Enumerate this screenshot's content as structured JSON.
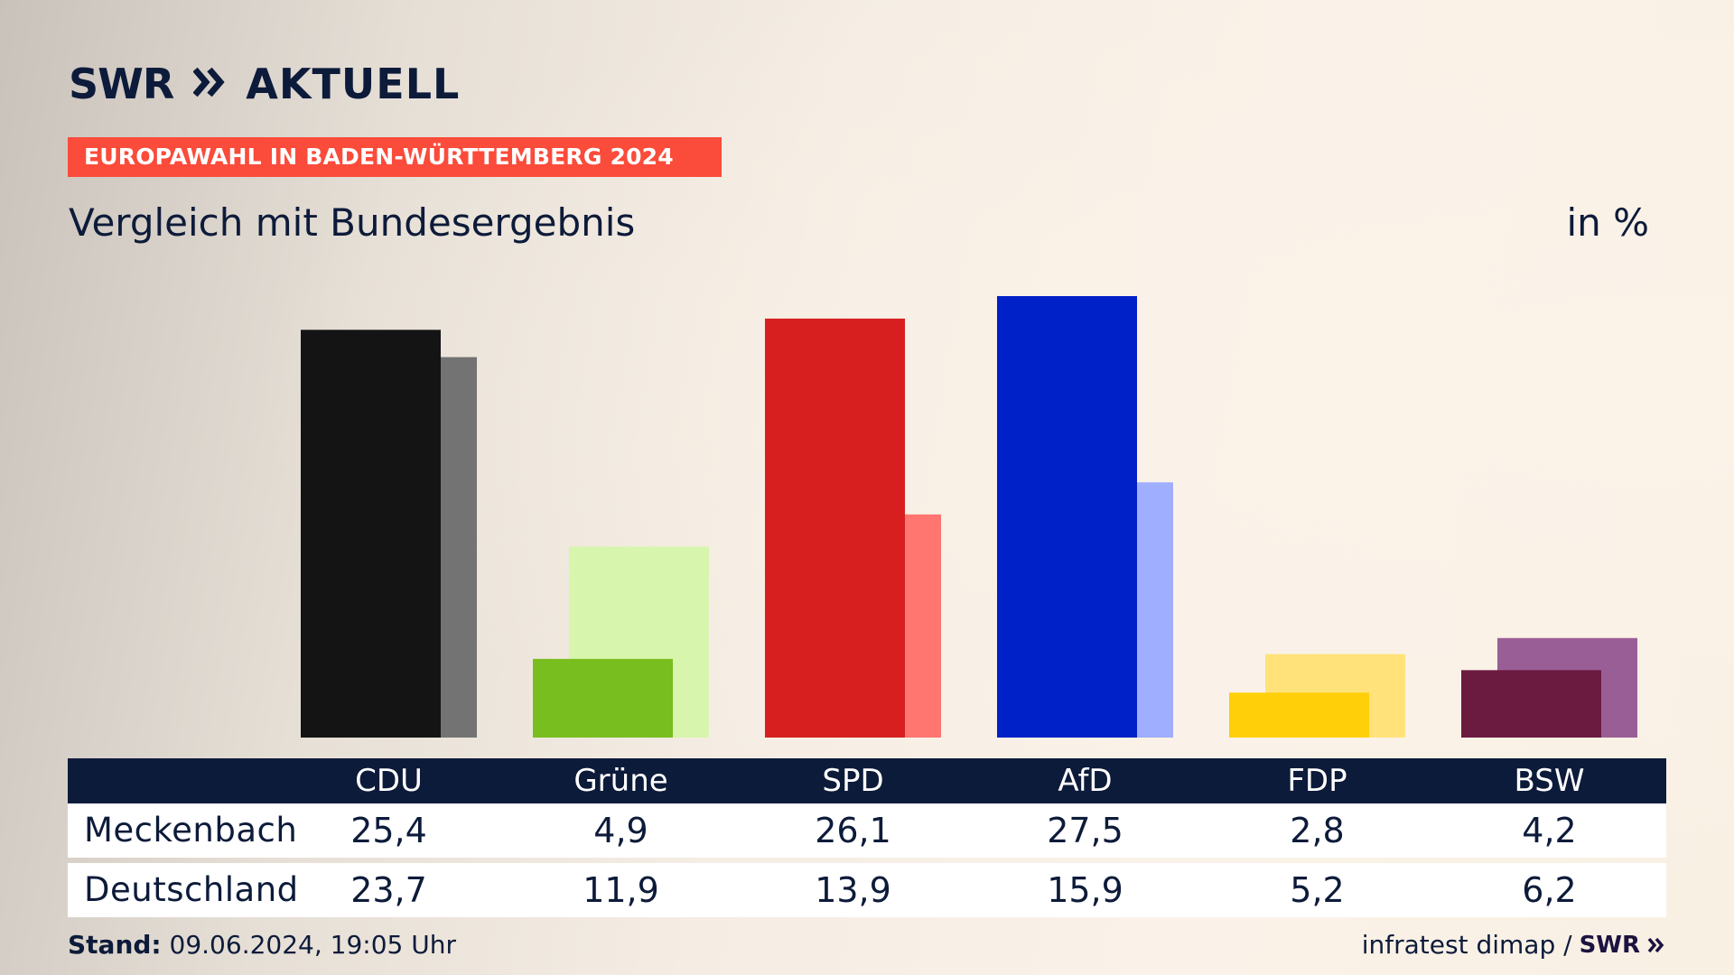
{
  "brand": {
    "swr": "SWR",
    "aktuell": "AKTUELL"
  },
  "banner": "EUROPAWAHL IN BADEN-WÜRTTEMBERG 2024",
  "subtitle": "Vergleich mit Bundesergebnis",
  "unit": "in %",
  "chart_data": {
    "type": "bar",
    "categories": [
      "CDU",
      "Grüne",
      "SPD",
      "AfD",
      "FDP",
      "BSW"
    ],
    "series": [
      {
        "name": "Meckenbach",
        "values": [
          25.4,
          4.9,
          26.1,
          27.5,
          2.8,
          4.2
        ],
        "value_labels": [
          "25,4",
          "4,9",
          "26,1",
          "27,5",
          "2,8",
          "4,2"
        ]
      },
      {
        "name": "Deutschland",
        "values": [
          23.7,
          11.9,
          13.9,
          15.9,
          5.2,
          6.2
        ],
        "value_labels": [
          "23,7",
          "11,9",
          "13,9",
          "15,9",
          "5,2",
          "6,2"
        ]
      }
    ],
    "colors": {
      "primary": [
        "#141414",
        "#78be1e",
        "#d71f20",
        "#0020c8",
        "#ffcf0a",
        "#6b1a40"
      ],
      "secondary": [
        "#737373",
        "#d8f5ad",
        "#ff7570",
        "#9faeff",
        "#ffe27a",
        "#9a5e96"
      ]
    },
    "ylim": [
      0,
      27.5
    ]
  },
  "table": {
    "row_labels": [
      "Meckenbach",
      "Deutschland"
    ]
  },
  "footer": {
    "stand_label": "Stand:",
    "stand_value": "09.06.2024, 19:05 Uhr",
    "source": "infratest dimap /",
    "source_brand": "SWR"
  }
}
